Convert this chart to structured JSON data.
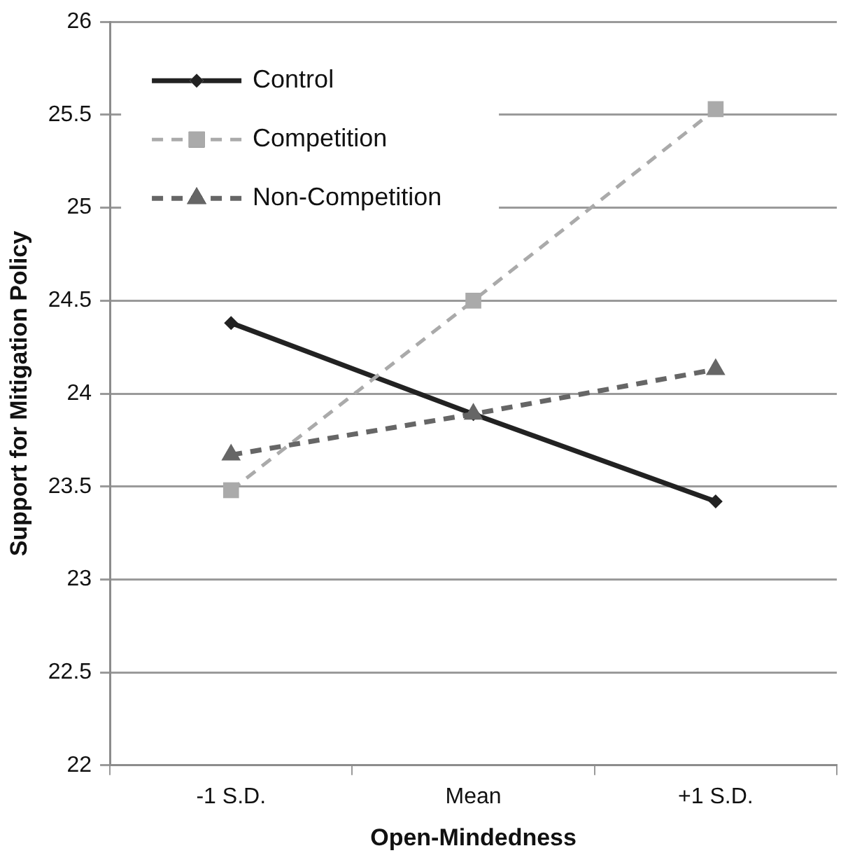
{
  "chart_data": {
    "type": "line",
    "xlabel": "Open-Mindedness",
    "ylabel": "Support for Mitigation Policy",
    "categories": [
      "-1 S.D.",
      "Mean",
      "+1 S.D."
    ],
    "series": [
      {
        "name": "Control",
        "color": "#222222",
        "values": [
          24.38,
          23.89,
          23.42
        ],
        "marker": "diamond",
        "line_style": "solid"
      },
      {
        "name": "Competition",
        "color": "#aaaaaa",
        "values": [
          23.48,
          24.5,
          25.53
        ],
        "marker": "square",
        "line_style": "dashed"
      },
      {
        "name": "Non-Competition",
        "color": "#666666",
        "values": [
          23.67,
          23.89,
          24.13
        ],
        "marker": "triangle",
        "line_style": "dashed"
      }
    ],
    "ylim": [
      22,
      26
    ],
    "yticks": [
      22,
      22.5,
      23,
      23.5,
      24,
      24.5,
      25,
      25.5,
      26
    ],
    "grid": "y",
    "legend": "top left"
  }
}
